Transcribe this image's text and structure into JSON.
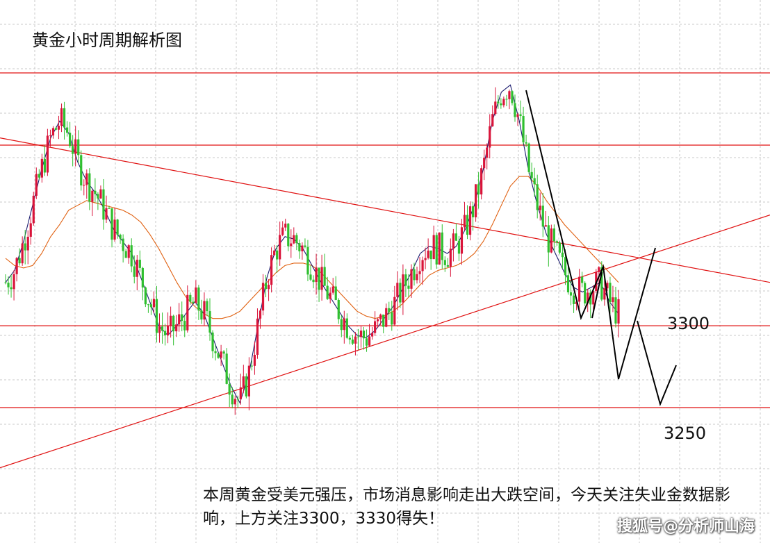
{
  "title": "黄金小时周期解析图",
  "note": "本周黄金受美元强压，市场消息影响走出大跌空间，今天关注失业金数据影响，上方关注3300，3330得失！",
  "watermark": "搜狐号@分析师山海",
  "level_labels": {
    "upper": "3300",
    "lower": "3250"
  },
  "colors": {
    "background": "#ffffff",
    "grid": "#c8c8c8",
    "up_candle": "#d9143a",
    "down_candle": "#2fbf2f",
    "ma_fast": "#1a1a6e",
    "ma_slow": "#e06010",
    "level_line": "#e01010",
    "projection": "#000000"
  },
  "chart_data": {
    "type": "candlestick",
    "instrument": "黄金",
    "timeframe": "1小时",
    "grid": true,
    "ylim": [
      3225,
      3440
    ],
    "horizontal_levels": [
      3405,
      3375,
      3300,
      3266
    ],
    "trendlines": [
      {
        "kind": "descending-resistance",
        "points": [
          [
            0,
            3378
          ],
          [
            100,
            3318
          ]
        ]
      },
      {
        "kind": "ascending-support",
        "points": [
          [
            0,
            3241
          ],
          [
            100,
            3346
          ]
        ]
      }
    ],
    "ma_fast": [
      3318,
      3323,
      3335,
      3350,
      3365,
      3378,
      3385,
      3380,
      3368,
      3360,
      3355,
      3348,
      3340,
      3335,
      3330,
      3320,
      3310,
      3300,
      3296,
      3300,
      3305,
      3310,
      3305,
      3295,
      3285,
      3275,
      3268,
      3280,
      3300,
      3320,
      3332,
      3337,
      3336,
      3332,
      3325,
      3318,
      3312,
      3306,
      3300,
      3296,
      3295,
      3298,
      3303,
      3308,
      3315,
      3322,
      3330,
      3333,
      3332,
      3330,
      3333,
      3340,
      3350,
      3365,
      3385,
      3397,
      3400,
      3385,
      3365,
      3350,
      3338,
      3330,
      3322,
      3316,
      3314,
      3316,
      3318,
      3310,
      3305
    ],
    "ma_slow": [
      3328,
      3325,
      3324,
      3325,
      3330,
      3337,
      3342,
      3348,
      3350,
      3352,
      3351,
      3350,
      3349,
      3348,
      3346,
      3343,
      3338,
      3332,
      3325,
      3318,
      3312,
      3308,
      3305,
      3303,
      3303,
      3304,
      3306,
      3310,
      3314,
      3318,
      3322,
      3325,
      3326,
      3326,
      3325,
      3322,
      3318,
      3314,
      3310,
      3306,
      3304,
      3303,
      3304,
      3306,
      3309,
      3313,
      3317,
      3321,
      3323,
      3324,
      3325,
      3327,
      3330,
      3335,
      3342,
      3350,
      3358,
      3362,
      3362,
      3358,
      3352,
      3347,
      3342,
      3338,
      3334,
      3330,
      3326,
      3322,
      3318
    ],
    "candles_source": "generated in script from ma_fast path"
  }
}
